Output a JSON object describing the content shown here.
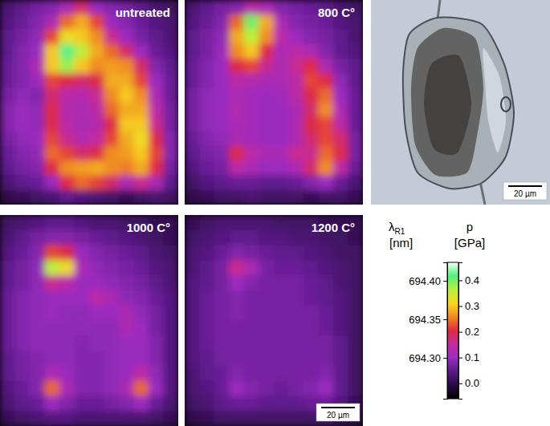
{
  "chart_data": {
    "type": "heatmap",
    "panels": [
      {
        "title": "untreated",
        "cells": [
          [
            0.03,
            0.05,
            0.07,
            0.08,
            0.12,
            0.18,
            0.1,
            0.08,
            0.07,
            0.05,
            0.03,
            0.02
          ],
          [
            0.04,
            0.06,
            0.08,
            0.12,
            0.24,
            0.28,
            0.22,
            0.1,
            0.08,
            0.06,
            0.04,
            0.03
          ],
          [
            0.05,
            0.07,
            0.09,
            0.22,
            0.32,
            0.3,
            0.26,
            0.16,
            0.1,
            0.07,
            0.05,
            0.03
          ],
          [
            0.05,
            0.08,
            0.1,
            0.3,
            0.42,
            0.36,
            0.28,
            0.24,
            0.18,
            0.1,
            0.06,
            0.04
          ],
          [
            0.06,
            0.08,
            0.12,
            0.3,
            0.38,
            0.3,
            0.26,
            0.27,
            0.26,
            0.18,
            0.08,
            0.05
          ],
          [
            0.06,
            0.08,
            0.1,
            0.22,
            0.2,
            0.18,
            0.2,
            0.28,
            0.28,
            0.22,
            0.1,
            0.06
          ],
          [
            0.07,
            0.09,
            0.08,
            0.18,
            0.14,
            0.13,
            0.16,
            0.26,
            0.3,
            0.26,
            0.12,
            0.06
          ],
          [
            0.08,
            0.1,
            0.09,
            0.2,
            0.13,
            0.12,
            0.14,
            0.24,
            0.28,
            0.28,
            0.14,
            0.07
          ],
          [
            0.08,
            0.1,
            0.09,
            0.2,
            0.14,
            0.12,
            0.13,
            0.2,
            0.3,
            0.3,
            0.16,
            0.07
          ],
          [
            0.07,
            0.09,
            0.1,
            0.22,
            0.16,
            0.13,
            0.15,
            0.22,
            0.28,
            0.32,
            0.2,
            0.08
          ],
          [
            0.06,
            0.08,
            0.09,
            0.24,
            0.22,
            0.18,
            0.2,
            0.26,
            0.27,
            0.3,
            0.22,
            0.08
          ],
          [
            0.05,
            0.07,
            0.08,
            0.2,
            0.26,
            0.27,
            0.28,
            0.26,
            0.25,
            0.28,
            0.2,
            0.07
          ],
          [
            0.03,
            0.05,
            0.06,
            0.1,
            0.2,
            0.24,
            0.22,
            0.18,
            0.12,
            0.16,
            0.12,
            0.05
          ],
          [
            0.0,
            0.01,
            0.02,
            0.03,
            0.05,
            0.04,
            0.03,
            0.02,
            0.01,
            0.02,
            0.03,
            0.02
          ]
        ]
      },
      {
        "title": "800 C°",
        "cells": [
          [
            0.03,
            0.05,
            0.07,
            0.08,
            0.14,
            0.12,
            0.08,
            0.07,
            0.06,
            0.05,
            0.03,
            0.02
          ],
          [
            0.04,
            0.06,
            0.08,
            0.24,
            0.4,
            0.28,
            0.12,
            0.08,
            0.07,
            0.06,
            0.04,
            0.03
          ],
          [
            0.05,
            0.07,
            0.09,
            0.28,
            0.36,
            0.26,
            0.14,
            0.1,
            0.08,
            0.07,
            0.05,
            0.03
          ],
          [
            0.05,
            0.07,
            0.1,
            0.26,
            0.3,
            0.2,
            0.12,
            0.14,
            0.12,
            0.08,
            0.05,
            0.04
          ],
          [
            0.06,
            0.08,
            0.1,
            0.2,
            0.22,
            0.16,
            0.12,
            0.16,
            0.2,
            0.12,
            0.07,
            0.05
          ],
          [
            0.06,
            0.08,
            0.1,
            0.14,
            0.13,
            0.12,
            0.12,
            0.14,
            0.22,
            0.2,
            0.09,
            0.05
          ],
          [
            0.07,
            0.09,
            0.1,
            0.12,
            0.11,
            0.1,
            0.11,
            0.14,
            0.2,
            0.24,
            0.1,
            0.06
          ],
          [
            0.07,
            0.09,
            0.1,
            0.13,
            0.11,
            0.1,
            0.1,
            0.12,
            0.18,
            0.26,
            0.12,
            0.06
          ],
          [
            0.07,
            0.09,
            0.1,
            0.12,
            0.11,
            0.1,
            0.1,
            0.12,
            0.2,
            0.22,
            0.14,
            0.06
          ],
          [
            0.06,
            0.08,
            0.09,
            0.12,
            0.11,
            0.1,
            0.1,
            0.12,
            0.18,
            0.22,
            0.18,
            0.07
          ],
          [
            0.05,
            0.07,
            0.08,
            0.2,
            0.14,
            0.12,
            0.12,
            0.16,
            0.16,
            0.24,
            0.2,
            0.07
          ],
          [
            0.04,
            0.06,
            0.07,
            0.14,
            0.12,
            0.1,
            0.1,
            0.12,
            0.18,
            0.26,
            0.14,
            0.06
          ],
          [
            0.02,
            0.04,
            0.05,
            0.06,
            0.06,
            0.05,
            0.05,
            0.06,
            0.08,
            0.1,
            0.06,
            0.03
          ],
          [
            0.0,
            0.01,
            0.02,
            0.02,
            0.03,
            0.02,
            0.02,
            0.02,
            0.01,
            0.02,
            0.02,
            0.01
          ]
        ]
      },
      {
        "title": "1000 C°",
        "cells": [
          [
            0.02,
            0.03,
            0.04,
            0.05,
            0.05,
            0.04,
            0.03,
            0.03,
            0.02,
            0.02,
            0.01,
            0.01
          ],
          [
            0.03,
            0.05,
            0.07,
            0.08,
            0.08,
            0.07,
            0.06,
            0.05,
            0.04,
            0.03,
            0.02,
            0.01
          ],
          [
            0.04,
            0.06,
            0.08,
            0.22,
            0.2,
            0.1,
            0.08,
            0.07,
            0.06,
            0.05,
            0.03,
            0.02
          ],
          [
            0.05,
            0.07,
            0.09,
            0.36,
            0.32,
            0.12,
            0.09,
            0.08,
            0.07,
            0.06,
            0.04,
            0.03
          ],
          [
            0.05,
            0.07,
            0.09,
            0.16,
            0.14,
            0.1,
            0.1,
            0.09,
            0.08,
            0.07,
            0.05,
            0.03
          ],
          [
            0.06,
            0.08,
            0.09,
            0.1,
            0.1,
            0.1,
            0.14,
            0.12,
            0.09,
            0.08,
            0.06,
            0.04
          ],
          [
            0.06,
            0.08,
            0.09,
            0.1,
            0.09,
            0.09,
            0.1,
            0.1,
            0.12,
            0.09,
            0.07,
            0.04
          ],
          [
            0.06,
            0.08,
            0.09,
            0.09,
            0.09,
            0.09,
            0.09,
            0.09,
            0.12,
            0.1,
            0.07,
            0.04
          ],
          [
            0.06,
            0.08,
            0.09,
            0.09,
            0.09,
            0.08,
            0.09,
            0.09,
            0.1,
            0.1,
            0.08,
            0.04
          ],
          [
            0.05,
            0.07,
            0.08,
            0.09,
            0.09,
            0.08,
            0.08,
            0.09,
            0.1,
            0.1,
            0.08,
            0.04
          ],
          [
            0.05,
            0.07,
            0.08,
            0.12,
            0.1,
            0.08,
            0.08,
            0.09,
            0.1,
            0.14,
            0.09,
            0.04
          ],
          [
            0.04,
            0.06,
            0.08,
            0.24,
            0.12,
            0.08,
            0.08,
            0.09,
            0.12,
            0.24,
            0.1,
            0.04
          ],
          [
            0.03,
            0.05,
            0.06,
            0.1,
            0.08,
            0.06,
            0.06,
            0.07,
            0.08,
            0.1,
            0.06,
            0.03
          ],
          [
            0.01,
            0.02,
            0.03,
            0.04,
            0.04,
            0.03,
            0.03,
            0.03,
            0.03,
            0.03,
            0.02,
            0.01
          ]
        ]
      },
      {
        "title": "1200 C°",
        "scale_bar": "20 µm",
        "cells": [
          [
            0.01,
            0.02,
            0.03,
            0.03,
            0.03,
            0.03,
            0.02,
            0.02,
            0.02,
            0.01,
            0.01,
            0.01
          ],
          [
            0.02,
            0.03,
            0.04,
            0.05,
            0.05,
            0.04,
            0.04,
            0.03,
            0.03,
            0.02,
            0.02,
            0.01
          ],
          [
            0.03,
            0.04,
            0.06,
            0.08,
            0.07,
            0.06,
            0.05,
            0.05,
            0.04,
            0.03,
            0.02,
            0.02
          ],
          [
            0.03,
            0.05,
            0.07,
            0.16,
            0.12,
            0.07,
            0.06,
            0.06,
            0.05,
            0.04,
            0.03,
            0.02
          ],
          [
            0.04,
            0.05,
            0.07,
            0.1,
            0.08,
            0.07,
            0.07,
            0.07,
            0.06,
            0.05,
            0.03,
            0.02
          ],
          [
            0.04,
            0.06,
            0.07,
            0.08,
            0.07,
            0.07,
            0.07,
            0.07,
            0.06,
            0.05,
            0.04,
            0.02
          ],
          [
            0.04,
            0.06,
            0.07,
            0.08,
            0.07,
            0.07,
            0.07,
            0.07,
            0.07,
            0.06,
            0.04,
            0.02
          ],
          [
            0.04,
            0.06,
            0.07,
            0.07,
            0.07,
            0.07,
            0.07,
            0.07,
            0.07,
            0.06,
            0.04,
            0.02
          ],
          [
            0.04,
            0.06,
            0.07,
            0.07,
            0.07,
            0.07,
            0.07,
            0.07,
            0.07,
            0.07,
            0.05,
            0.02
          ],
          [
            0.04,
            0.05,
            0.07,
            0.07,
            0.07,
            0.07,
            0.07,
            0.07,
            0.07,
            0.07,
            0.05,
            0.02
          ],
          [
            0.03,
            0.05,
            0.06,
            0.08,
            0.07,
            0.07,
            0.07,
            0.07,
            0.07,
            0.08,
            0.05,
            0.02
          ],
          [
            0.03,
            0.04,
            0.06,
            0.1,
            0.08,
            0.07,
            0.06,
            0.07,
            0.08,
            0.1,
            0.05,
            0.02
          ],
          [
            0.02,
            0.03,
            0.05,
            0.06,
            0.06,
            0.05,
            0.05,
            0.05,
            0.06,
            0.06,
            0.04,
            0.01
          ],
          [
            0.0,
            0.01,
            0.02,
            0.02,
            0.02,
            0.02,
            0.02,
            0.02,
            0.02,
            0.02,
            0.01,
            0.0
          ]
        ]
      }
    ],
    "photo": {
      "scale_bar": "20 µm"
    },
    "colorbar": {
      "lambda": {
        "title": "λ",
        "subscript": "R1",
        "unit": "[nm]",
        "lim": [
          694.247,
          694.424
        ],
        "ticks": [
          {
            "value": 694.3,
            "label": "694.30"
          },
          694.35,
          {
            "value": 694.4,
            "label": "694.40"
          }
        ]
      },
      "p": {
        "title": "p",
        "unit": "[GPa]",
        "lim": [
          -0.06,
          0.47
        ],
        "ticks": [
          {
            "value": 0,
            "label": "0.0"
          },
          0.1,
          0.2,
          0.3,
          0.4
        ]
      }
    }
  }
}
